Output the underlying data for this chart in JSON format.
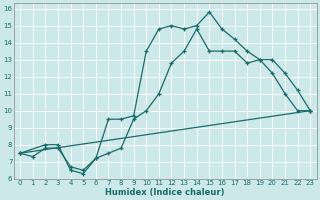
{
  "xlabel": "Humidex (Indice chaleur)",
  "xlim": [
    -0.5,
    23.5
  ],
  "ylim": [
    6,
    16.3
  ],
  "yticks": [
    6,
    7,
    8,
    9,
    10,
    11,
    12,
    13,
    14,
    15,
    16
  ],
  "xticks": [
    0,
    1,
    2,
    3,
    4,
    5,
    6,
    7,
    8,
    9,
    10,
    11,
    12,
    13,
    14,
    15,
    16,
    17,
    18,
    19,
    20,
    21,
    22,
    23
  ],
  "bg_color": "#cde8e8",
  "line_color": "#1a6b6b",
  "line1_x": [
    0,
    1,
    2,
    3,
    4,
    5,
    6,
    7,
    8,
    9,
    10,
    11,
    12,
    13,
    14,
    15,
    16,
    17,
    18,
    19,
    20,
    21,
    22,
    23
  ],
  "line1_y": [
    7.5,
    7.3,
    7.8,
    7.8,
    6.7,
    6.5,
    7.2,
    9.5,
    9.5,
    9.7,
    13.5,
    14.8,
    15.0,
    14.8,
    15.0,
    15.8,
    14.8,
    14.2,
    13.5,
    13.0,
    12.2,
    11.0,
    10.0,
    10.0
  ],
  "line2_x": [
    0,
    2,
    3,
    4,
    5,
    6,
    7,
    8,
    9,
    10,
    11,
    12,
    13,
    14,
    15,
    16,
    17,
    18,
    19,
    20,
    21,
    22,
    23
  ],
  "line2_y": [
    7.5,
    8.0,
    8.0,
    6.5,
    6.3,
    7.2,
    7.5,
    7.8,
    9.5,
    10.0,
    11.0,
    12.8,
    13.5,
    14.8,
    13.5,
    13.5,
    13.5,
    12.8,
    13.0,
    13.0,
    12.2,
    11.2,
    10.0
  ],
  "line3_x": [
    0,
    23
  ],
  "line3_y": [
    7.5,
    10.0
  ]
}
